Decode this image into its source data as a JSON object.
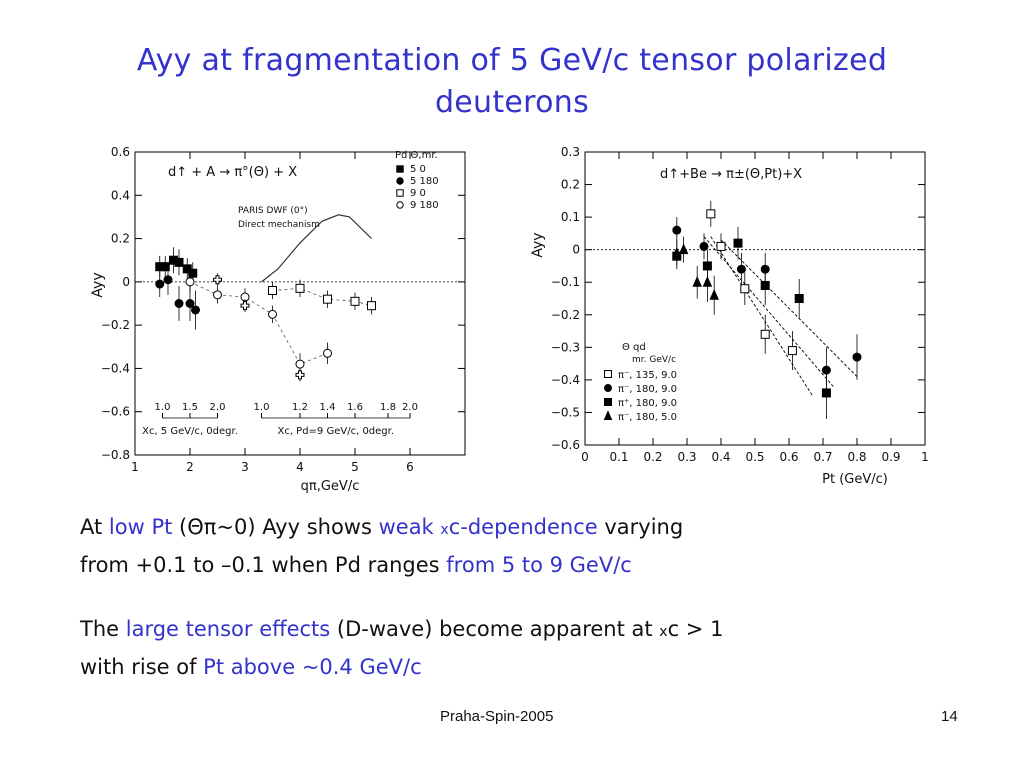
{
  "slide": {
    "title_line1": "Ayy  at fragmentation of 5 GeV/c tensor polarized",
    "title_line2": "deuterons",
    "p1": {
      "t1": "At ",
      "h1": "low Pt",
      "t2": " (",
      "sym": "Θπ",
      "t3": "~0) Ayy shows ",
      "h2": "weak ",
      "x1": "x",
      "h3": "c-dependence",
      "t4": " varying",
      "t5": "from +0.1 to –0.1 when Pd ranges ",
      "h4": "from 5 to 9 GeV/c"
    },
    "p2": {
      "t1": "The ",
      "h1": "large tensor effects",
      "t2": " (D-wave) become apparent at ",
      "x1": "x",
      "t3": "c > 1",
      "t4": "with rise of ",
      "h2": "Pt above ~0.4 GeV/c"
    },
    "footer_left": "Praha-Spin-2005",
    "footer_right": "14"
  },
  "colors": {
    "accent": "#3333cc",
    "text": "#111111"
  },
  "chart_data": [
    {
      "type": "scatter",
      "ylabel": "Ayy",
      "xlabel": "qπ,GeV/c",
      "reaction": "d↑ + A → π°(Θ) + X",
      "xlim": [
        1,
        7
      ],
      "ylim": [
        -0.8,
        0.6
      ],
      "xticks": [
        1,
        2,
        3,
        4,
        5,
        6
      ],
      "yticks": [
        0.6,
        0.4,
        0.2,
        0,
        -0.2,
        -0.4,
        -0.6,
        -0.8
      ],
      "legend_title": "Pd  Θ,mr.",
      "legend_placement": "top-right",
      "annotation": "PARIS DWF (0°)\nDirect mechanism",
      "grid": false,
      "zero_line": true,
      "curve": {
        "name": "PARIS DWF (0°)",
        "x": [
          3.3,
          3.6,
          4.0,
          4.4,
          4.7,
          4.9,
          5.1,
          5.3
        ],
        "y": [
          0.0,
          0.06,
          0.18,
          0.28,
          0.31,
          0.3,
          0.25,
          0.2
        ]
      },
      "series": [
        {
          "name": "5 0",
          "marker": "filled-square",
          "x": [
            1.45,
            1.55,
            1.7,
            1.8,
            1.95,
            2.05
          ],
          "y": [
            0.07,
            0.07,
            0.1,
            0.09,
            0.06,
            0.04
          ],
          "err": [
            0.05,
            0.05,
            0.06,
            0.06,
            0.05,
            0.05
          ],
          "dashed": true
        },
        {
          "name": "5 180",
          "marker": "filled-circle",
          "x": [
            1.45,
            1.6,
            1.8,
            2.0,
            2.1
          ],
          "y": [
            -0.01,
            0.01,
            -0.1,
            -0.1,
            -0.13
          ],
          "err": [
            0.06,
            0.07,
            0.08,
            0.08,
            0.09
          ],
          "dashed": false
        },
        {
          "name": "9 0",
          "marker": "open-square",
          "x": [
            3.5,
            4.0,
            4.5,
            5.0,
            5.3
          ],
          "y": [
            -0.04,
            -0.03,
            -0.08,
            -0.09,
            -0.11
          ],
          "err": [
            0.04,
            0.04,
            0.04,
            0.04,
            0.04
          ],
          "dashed": true
        },
        {
          "name": "9 180",
          "marker": "open-circle",
          "x": [
            2.0,
            2.5,
            3.0,
            3.5,
            4.0,
            4.5
          ],
          "y": [
            0.0,
            -0.06,
            -0.07,
            -0.15,
            -0.38,
            -0.33
          ],
          "err": [
            0.05,
            0.04,
            0.04,
            0.04,
            0.05,
            0.05
          ],
          "dashed": true
        },
        {
          "name": "",
          "marker": "open-cross",
          "x": [
            2.5,
            3.0,
            4.0
          ],
          "y": [
            0.01,
            -0.11,
            -0.43
          ],
          "err": [
            0.03,
            0.03,
            0.03
          ],
          "dashed": false
        }
      ],
      "scale1": {
        "label": "Xc, 5 GeV/c, 0degr.",
        "ticks": [
          "1.0",
          "1.5",
          "2.0"
        ],
        "x": [
          1.5,
          2.0,
          2.5
        ]
      },
      "scale2": {
        "label": "Xc, Pd=9 GeV/c, 0degr.",
        "ticks": [
          "1.0",
          "1.2",
          "1.4",
          "1.6",
          "1.8",
          "2.0"
        ],
        "x": [
          3.3,
          4.0,
          4.5,
          5.0,
          5.6,
          6.0
        ]
      }
    },
    {
      "type": "scatter",
      "ylabel": "Ayy",
      "xlabel": "Pt (GeV/c)",
      "reaction": "d↑+Be → π±(Θ,Pt)+X",
      "xlim": [
        0,
        1
      ],
      "ylim": [
        -0.6,
        0.3
      ],
      "xticks": [
        0,
        0.1,
        0.2,
        0.3,
        0.4,
        0.5,
        0.6,
        0.7,
        0.8,
        0.9,
        1
      ],
      "yticks": [
        0.3,
        0.2,
        0.1,
        0,
        -0.1,
        -0.2,
        -0.3,
        -0.4,
        -0.5,
        -0.6
      ],
      "legend_title": "Θ    qd",
      "legend_subtitle": "mr. GeV/c",
      "legend_placement": "bottom-left",
      "grid": false,
      "zero_line": true,
      "series": [
        {
          "name": "π⁻, 135, 9.0",
          "marker": "open-square",
          "x": [
            0.37,
            0.4,
            0.47,
            0.53,
            0.61
          ],
          "y": [
            0.11,
            0.01,
            -0.12,
            -0.26,
            -0.31
          ],
          "err": [
            0.04,
            0.04,
            0.05,
            0.06,
            0.06
          ]
        },
        {
          "name": "π⁻, 180, 9.0",
          "marker": "filled-circle",
          "x": [
            0.27,
            0.35,
            0.46,
            0.53,
            0.71,
            0.8
          ],
          "y": [
            0.06,
            0.01,
            -0.06,
            -0.06,
            -0.37,
            -0.33
          ],
          "err": [
            0.04,
            0.04,
            0.05,
            0.05,
            0.07,
            0.07
          ]
        },
        {
          "name": "π⁺, 180, 9.0",
          "marker": "filled-square",
          "x": [
            0.27,
            0.36,
            0.45,
            0.53,
            0.63,
            0.71
          ],
          "y": [
            -0.02,
            -0.05,
            0.02,
            -0.11,
            -0.15,
            -0.44
          ],
          "err": [
            0.04,
            0.05,
            0.05,
            0.06,
            0.06,
            0.08
          ]
        },
        {
          "name": "π⁻, 180, 5.0",
          "marker": "filled-triangle",
          "x": [
            0.27,
            0.29,
            0.33,
            0.36,
            0.38
          ],
          "y": [
            -0.01,
            0.0,
            -0.1,
            -0.1,
            -0.14
          ],
          "err": [
            0.04,
            0.04,
            0.05,
            0.06,
            0.06
          ]
        }
      ],
      "fit_lines": [
        {
          "x": [
            0.37,
            0.67
          ],
          "y": [
            0.04,
            -0.45
          ]
        },
        {
          "x": [
            0.4,
            0.8
          ],
          "y": [
            0.03,
            -0.39
          ]
        },
        {
          "x": [
            0.35,
            0.73
          ],
          "y": [
            0.04,
            -0.42
          ]
        }
      ]
    }
  ]
}
